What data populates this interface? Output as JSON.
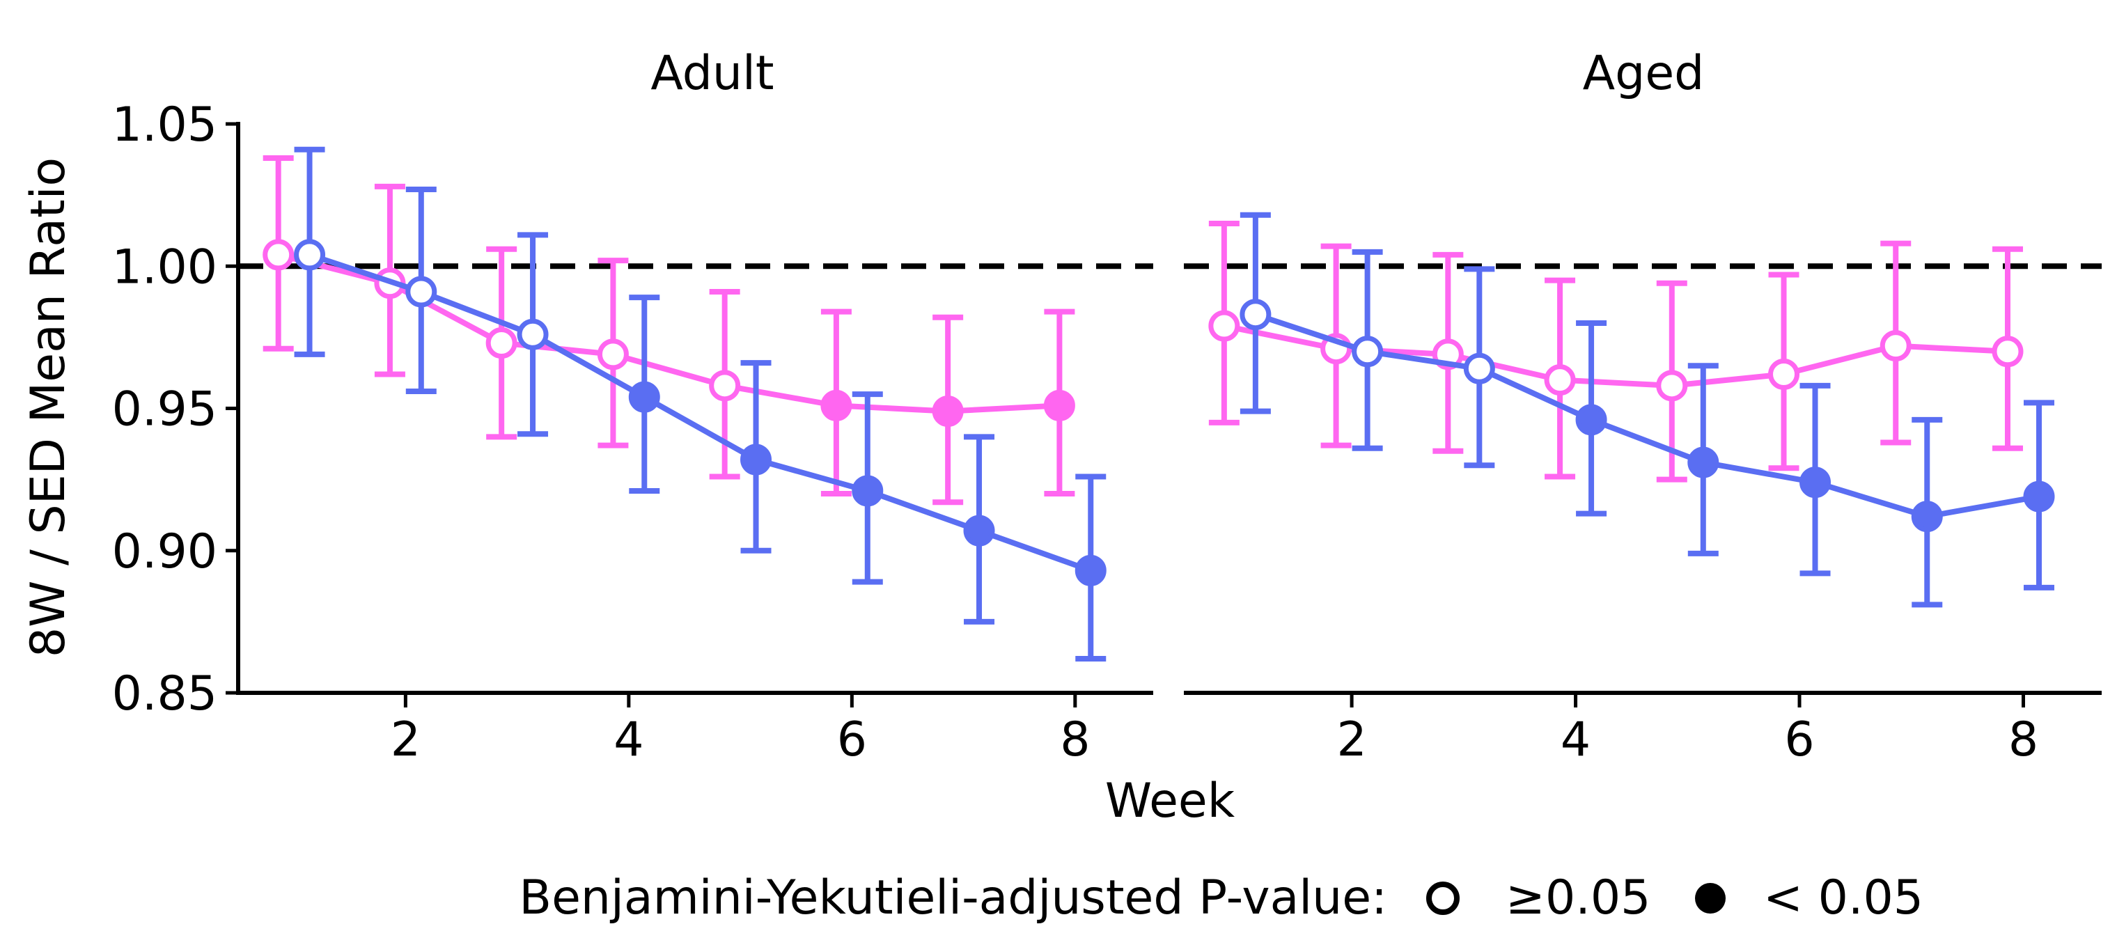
{
  "chart_data": {
    "type": "line",
    "ylabel": "8W / SED Mean Ratio",
    "xlabel": "Week",
    "ylim": [
      0.85,
      1.05
    ],
    "yticks": [
      "0.85",
      "0.90",
      "0.95",
      "1.00",
      "1.05"
    ],
    "xlim": [
      0.5,
      8.7
    ],
    "xticks": [
      "2",
      "4",
      "6",
      "8"
    ],
    "reference_line": 1.0,
    "colors": {
      "pink": "#ff66f0",
      "blue": "#5a6ef2",
      "axis": "#000000"
    },
    "panels": [
      {
        "title": "Adult",
        "series": [
          {
            "color": "pink",
            "points": [
              {
                "x": 1,
                "y": 1.004,
                "lo": 0.971,
                "hi": 1.038,
                "sig": false
              },
              {
                "x": 2,
                "y": 0.994,
                "lo": 0.962,
                "hi": 1.028,
                "sig": false
              },
              {
                "x": 3,
                "y": 0.973,
                "lo": 0.94,
                "hi": 1.006,
                "sig": false
              },
              {
                "x": 4,
                "y": 0.969,
                "lo": 0.937,
                "hi": 1.002,
                "sig": false
              },
              {
                "x": 5,
                "y": 0.958,
                "lo": 0.926,
                "hi": 0.991,
                "sig": false
              },
              {
                "x": 6,
                "y": 0.951,
                "lo": 0.92,
                "hi": 0.984,
                "sig": true
              },
              {
                "x": 7,
                "y": 0.949,
                "lo": 0.917,
                "hi": 0.982,
                "sig": true
              },
              {
                "x": 8,
                "y": 0.951,
                "lo": 0.92,
                "hi": 0.984,
                "sig": true
              }
            ]
          },
          {
            "color": "blue",
            "points": [
              {
                "x": 1,
                "y": 1.004,
                "lo": 0.969,
                "hi": 1.041,
                "sig": false
              },
              {
                "x": 2,
                "y": 0.991,
                "lo": 0.956,
                "hi": 1.027,
                "sig": false
              },
              {
                "x": 3,
                "y": 0.976,
                "lo": 0.941,
                "hi": 1.011,
                "sig": false
              },
              {
                "x": 4,
                "y": 0.954,
                "lo": 0.921,
                "hi": 0.989,
                "sig": true
              },
              {
                "x": 5,
                "y": 0.932,
                "lo": 0.9,
                "hi": 0.966,
                "sig": true
              },
              {
                "x": 6,
                "y": 0.921,
                "lo": 0.889,
                "hi": 0.955,
                "sig": true
              },
              {
                "x": 7,
                "y": 0.907,
                "lo": 0.875,
                "hi": 0.94,
                "sig": true
              },
              {
                "x": 8,
                "y": 0.893,
                "lo": 0.862,
                "hi": 0.926,
                "sig": true
              }
            ]
          }
        ]
      },
      {
        "title": "Aged",
        "series": [
          {
            "color": "pink",
            "points": [
              {
                "x": 1,
                "y": 0.979,
                "lo": 0.945,
                "hi": 1.015,
                "sig": false
              },
              {
                "x": 2,
                "y": 0.971,
                "lo": 0.937,
                "hi": 1.007,
                "sig": false
              },
              {
                "x": 3,
                "y": 0.969,
                "lo": 0.935,
                "hi": 1.004,
                "sig": false
              },
              {
                "x": 4,
                "y": 0.96,
                "lo": 0.926,
                "hi": 0.995,
                "sig": false
              },
              {
                "x": 5,
                "y": 0.958,
                "lo": 0.925,
                "hi": 0.994,
                "sig": false
              },
              {
                "x": 6,
                "y": 0.962,
                "lo": 0.929,
                "hi": 0.997,
                "sig": false
              },
              {
                "x": 7,
                "y": 0.972,
                "lo": 0.938,
                "hi": 1.008,
                "sig": false
              },
              {
                "x": 8,
                "y": 0.97,
                "lo": 0.936,
                "hi": 1.006,
                "sig": false
              }
            ]
          },
          {
            "color": "blue",
            "points": [
              {
                "x": 1,
                "y": 0.983,
                "lo": 0.949,
                "hi": 1.018,
                "sig": false
              },
              {
                "x": 2,
                "y": 0.97,
                "lo": 0.936,
                "hi": 1.005,
                "sig": false
              },
              {
                "x": 3,
                "y": 0.964,
                "lo": 0.93,
                "hi": 0.999,
                "sig": false
              },
              {
                "x": 4,
                "y": 0.946,
                "lo": 0.913,
                "hi": 0.98,
                "sig": true
              },
              {
                "x": 5,
                "y": 0.931,
                "lo": 0.899,
                "hi": 0.965,
                "sig": true
              },
              {
                "x": 6,
                "y": 0.924,
                "lo": 0.892,
                "hi": 0.958,
                "sig": true
              },
              {
                "x": 7,
                "y": 0.912,
                "lo": 0.881,
                "hi": 0.946,
                "sig": true
              },
              {
                "x": 8,
                "y": 0.919,
                "lo": 0.887,
                "hi": 0.952,
                "sig": true
              }
            ]
          }
        ]
      }
    ],
    "legend": {
      "title": "Benjamini-Yekutieli-adjusted P-value:",
      "items": [
        {
          "marker": "open-circle",
          "label": "≥0.05"
        },
        {
          "marker": "filled-circle",
          "label": "< 0.05"
        }
      ],
      "position": "bottom-center"
    }
  }
}
